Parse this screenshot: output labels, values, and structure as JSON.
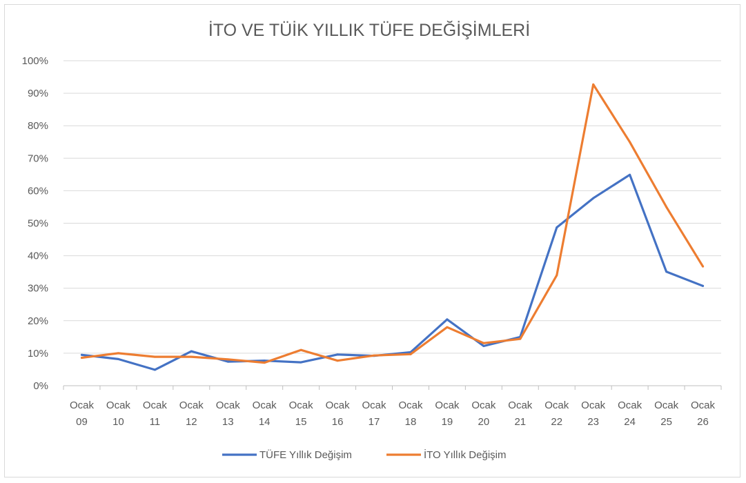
{
  "chart_data": {
    "type": "line",
    "title": "İTO VE TÜİK YILLIK TÜFE DEĞİŞİMLERİ",
    "xlabel": "",
    "ylabel": "",
    "categories": [
      [
        "Ocak",
        "09"
      ],
      [
        "Ocak",
        "10"
      ],
      [
        "Ocak",
        "11"
      ],
      [
        "Ocak",
        "12"
      ],
      [
        "Ocak",
        "13"
      ],
      [
        "Ocak",
        "14"
      ],
      [
        "Ocak",
        "15"
      ],
      [
        "Ocak",
        "16"
      ],
      [
        "Ocak",
        "17"
      ],
      [
        "Ocak",
        "18"
      ],
      [
        "Ocak",
        "19"
      ],
      [
        "Ocak",
        "20"
      ],
      [
        "Ocak",
        "21"
      ],
      [
        "Ocak",
        "22"
      ],
      [
        "Ocak",
        "23"
      ],
      [
        "Ocak",
        "24"
      ],
      [
        "Ocak",
        "25"
      ],
      [
        "Ocak",
        "26"
      ]
    ],
    "ylim": [
      0,
      100
    ],
    "yticks": [
      "0%",
      "10%",
      "20%",
      "30%",
      "40%",
      "50%",
      "60%",
      "70%",
      "80%",
      "90%",
      "100%"
    ],
    "grid": true,
    "legend_position": "bottom",
    "series": [
      {
        "name": "TÜFE Yıllık Değişim",
        "color": "#4472c4",
        "values": [
          9.5,
          8.2,
          4.9,
          10.6,
          7.4,
          7.7,
          7.2,
          9.6,
          9.2,
          10.3,
          20.4,
          12.2,
          15.0,
          48.7,
          57.7,
          64.9,
          35.1,
          30.7
        ]
      },
      {
        "name": "İTO Yıllık Değişim",
        "color": "#ed7d31",
        "values": [
          8.6,
          10.0,
          8.9,
          8.9,
          8.1,
          7.1,
          11.0,
          7.7,
          9.3,
          9.7,
          18.0,
          13.1,
          14.4,
          34.0,
          92.7,
          75.0,
          55.0,
          36.7
        ]
      }
    ]
  }
}
